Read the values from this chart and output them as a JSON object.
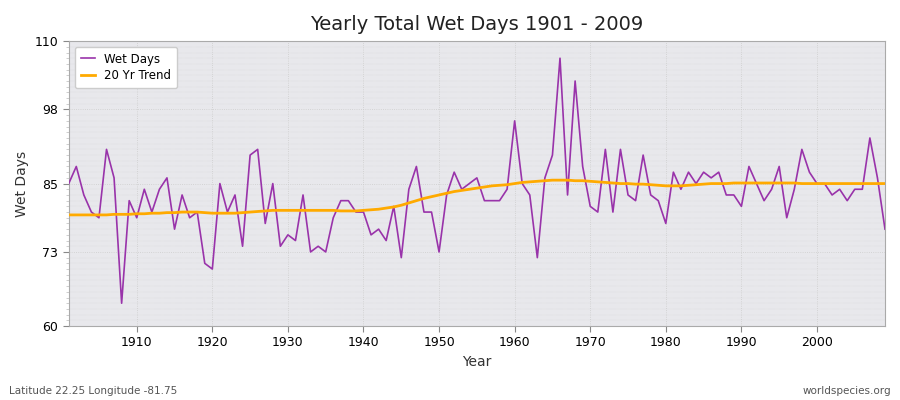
{
  "title": "Yearly Total Wet Days 1901 - 2009",
  "xlabel": "Year",
  "ylabel": "Wet Days",
  "subtitle": "Latitude 22.25 Longitude -81.75",
  "watermark": "worldspecies.org",
  "ylim": [
    60,
    110
  ],
  "yticks": [
    60,
    73,
    85,
    98,
    110
  ],
  "line_color": "#9933aa",
  "trend_color": "#ffaa00",
  "fig_bg": "#ffffff",
  "plot_bg": "#e8e8ec",
  "years": [
    1901,
    1902,
    1903,
    1904,
    1905,
    1906,
    1907,
    1908,
    1909,
    1910,
    1911,
    1912,
    1913,
    1914,
    1915,
    1916,
    1917,
    1918,
    1919,
    1920,
    1921,
    1922,
    1923,
    1924,
    1925,
    1926,
    1927,
    1928,
    1929,
    1930,
    1931,
    1932,
    1933,
    1934,
    1935,
    1936,
    1937,
    1938,
    1939,
    1940,
    1941,
    1942,
    1943,
    1944,
    1945,
    1946,
    1947,
    1948,
    1949,
    1950,
    1951,
    1952,
    1953,
    1954,
    1955,
    1956,
    1957,
    1958,
    1959,
    1960,
    1961,
    1962,
    1963,
    1964,
    1965,
    1966,
    1967,
    1968,
    1969,
    1970,
    1971,
    1972,
    1973,
    1974,
    1975,
    1976,
    1977,
    1978,
    1979,
    1980,
    1981,
    1982,
    1983,
    1984,
    1985,
    1986,
    1987,
    1988,
    1989,
    1990,
    1991,
    1992,
    1993,
    1994,
    1995,
    1996,
    1997,
    1998,
    1999,
    2000,
    2001,
    2002,
    2003,
    2004,
    2005,
    2006,
    2007,
    2008,
    2009
  ],
  "wet_days": [
    85,
    88,
    83,
    80,
    79,
    91,
    86,
    64,
    82,
    79,
    84,
    80,
    84,
    86,
    77,
    83,
    79,
    80,
    71,
    70,
    85,
    80,
    83,
    74,
    90,
    91,
    78,
    85,
    74,
    76,
    75,
    83,
    73,
    74,
    73,
    79,
    82,
    82,
    80,
    80,
    76,
    77,
    75,
    81,
    72,
    84,
    88,
    80,
    80,
    73,
    83,
    87,
    84,
    85,
    86,
    82,
    82,
    82,
    84,
    96,
    85,
    83,
    72,
    86,
    90,
    107,
    83,
    103,
    88,
    81,
    80,
    91,
    80,
    91,
    83,
    82,
    90,
    83,
    82,
    78,
    87,
    84,
    87,
    85,
    87,
    86,
    87,
    83,
    83,
    81,
    88,
    85,
    82,
    84,
    88,
    79,
    84,
    91,
    87,
    85,
    85,
    83,
    84,
    82,
    84,
    84,
    93,
    86,
    77
  ],
  "trend": [
    79.5,
    79.5,
    79.5,
    79.5,
    79.5,
    79.5,
    79.6,
    79.6,
    79.6,
    79.7,
    79.7,
    79.8,
    79.8,
    79.9,
    79.9,
    80.0,
    80.0,
    80.0,
    79.9,
    79.8,
    79.8,
    79.8,
    79.8,
    79.9,
    80.0,
    80.1,
    80.2,
    80.3,
    80.3,
    80.3,
    80.3,
    80.3,
    80.3,
    80.3,
    80.3,
    80.3,
    80.2,
    80.2,
    80.2,
    80.3,
    80.4,
    80.5,
    80.7,
    80.9,
    81.2,
    81.6,
    82.0,
    82.4,
    82.7,
    83.0,
    83.3,
    83.6,
    83.8,
    84.0,
    84.2,
    84.4,
    84.6,
    84.7,
    84.8,
    85.0,
    85.2,
    85.3,
    85.4,
    85.5,
    85.6,
    85.6,
    85.6,
    85.5,
    85.5,
    85.4,
    85.3,
    85.2,
    85.1,
    85.0,
    85.0,
    84.9,
    84.9,
    84.8,
    84.7,
    84.6,
    84.6,
    84.6,
    84.7,
    84.8,
    84.9,
    85.0,
    85.0,
    85.0,
    85.1,
    85.1,
    85.1,
    85.1,
    85.1,
    85.1,
    85.1,
    85.1,
    85.1,
    85.0,
    85.0,
    85.0,
    85.0,
    85.0,
    85.0,
    85.0,
    85.0,
    85.0,
    85.0,
    85.0,
    85.0
  ]
}
